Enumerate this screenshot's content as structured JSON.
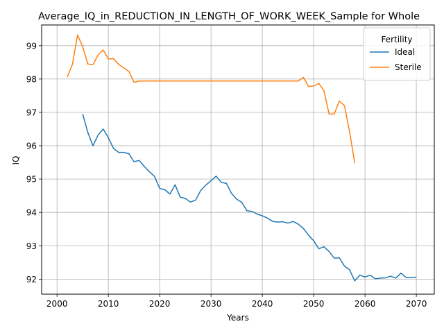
{
  "chart_data": {
    "type": "line",
    "title": "Average_IQ_in_REDUCTION_IN_LENGTH_OF_WORK_WEEK_Sample for Whole",
    "xlabel": "Years",
    "ylabel": "IQ",
    "xlim": [
      1997,
      2073.5
    ],
    "ylim": [
      91.55,
      99.62
    ],
    "xticks": [
      2000,
      2010,
      2020,
      2030,
      2040,
      2050,
      2060,
      2070
    ],
    "yticks": [
      92,
      93,
      94,
      95,
      96,
      97,
      98,
      99
    ],
    "grid": true,
    "legend": {
      "title": "Fertility",
      "placement": "top-right"
    },
    "series": [
      {
        "name": "Ideal",
        "color": "#1f77b4",
        "x": [
          2005,
          2006,
          2007,
          2008,
          2009,
          2010,
          2011,
          2012,
          2013,
          2014,
          2015,
          2016,
          2017,
          2018,
          2019,
          2020,
          2021,
          2022,
          2023,
          2024,
          2025,
          2026,
          2027,
          2028,
          2029,
          2030,
          2031,
          2032,
          2033,
          2034,
          2035,
          2036,
          2037,
          2038,
          2039,
          2040,
          2041,
          2042,
          2043,
          2044,
          2045,
          2046,
          2047,
          2048,
          2049,
          2050,
          2051,
          2052,
          2053,
          2054,
          2055,
          2056,
          2057,
          2058,
          2059,
          2060,
          2061,
          2062,
          2063,
          2064,
          2065,
          2066,
          2067,
          2068,
          2069,
          2070
        ],
        "y": [
          96.95,
          96.4,
          96.0,
          96.32,
          96.5,
          96.24,
          95.92,
          95.8,
          95.8,
          95.76,
          95.52,
          95.56,
          95.38,
          95.22,
          95.08,
          94.72,
          94.68,
          94.55,
          94.83,
          94.46,
          94.42,
          94.31,
          94.37,
          94.66,
          94.82,
          94.95,
          95.09,
          94.9,
          94.87,
          94.57,
          94.4,
          94.3,
          94.05,
          94.03,
          93.95,
          93.9,
          93.83,
          93.73,
          93.71,
          93.72,
          93.68,
          93.73,
          93.65,
          93.52,
          93.32,
          93.15,
          92.91,
          92.97,
          92.83,
          92.63,
          92.64,
          92.39,
          92.28,
          91.95,
          92.12,
          92.06,
          92.12,
          92.01,
          92.03,
          92.04,
          92.09,
          92.03,
          92.18,
          92.05,
          92.05,
          92.06
        ]
      },
      {
        "name": "Sterile",
        "color": "#ff7f0e",
        "x": [
          2002,
          2003,
          2004,
          2005,
          2006,
          2007,
          2008,
          2009,
          2010,
          2011,
          2012,
          2013,
          2014,
          2015,
          2016,
          2017,
          2018,
          2019,
          2020,
          2021,
          2022,
          2023,
          2024,
          2025,
          2026,
          2027,
          2028,
          2029,
          2030,
          2031,
          2032,
          2033,
          2034,
          2035,
          2036,
          2037,
          2038,
          2039,
          2040,
          2041,
          2042,
          2043,
          2044,
          2045,
          2046,
          2047,
          2048,
          2049,
          2050,
          2051,
          2052,
          2053,
          2054,
          2055,
          2056,
          2057,
          2058
        ],
        "y": [
          98.06,
          98.44,
          99.32,
          98.97,
          98.45,
          98.43,
          98.72,
          98.87,
          98.6,
          98.61,
          98.44,
          98.33,
          98.23,
          97.9,
          97.94,
          97.94,
          97.94,
          97.94,
          97.94,
          97.94,
          97.94,
          97.94,
          97.94,
          97.94,
          97.94,
          97.94,
          97.94,
          97.94,
          97.94,
          97.94,
          97.94,
          97.94,
          97.94,
          97.94,
          97.94,
          97.94,
          97.94,
          97.94,
          97.94,
          97.94,
          97.94,
          97.94,
          97.94,
          97.94,
          97.94,
          97.94,
          98.05,
          97.78,
          97.79,
          97.87,
          97.65,
          96.95,
          96.95,
          97.34,
          97.2,
          96.42,
          95.48
        ]
      }
    ]
  }
}
